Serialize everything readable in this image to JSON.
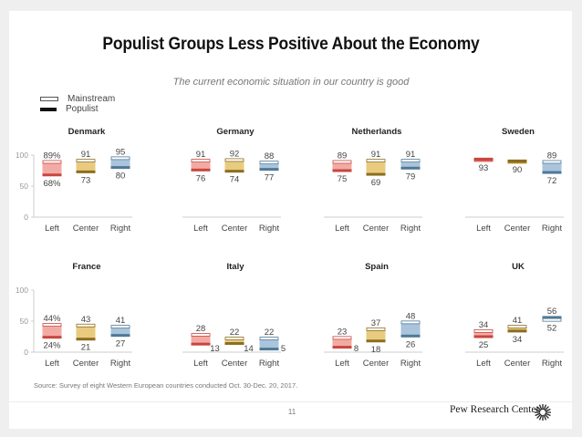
{
  "header": {
    "title": "Populist Groups Less Positive About the Economy",
    "subtitle": "The current economic situation in our country is good"
  },
  "legend": [
    {
      "key": "mainstream",
      "label": "Mainstream"
    },
    {
      "key": "populist",
      "label": "Populist"
    }
  ],
  "footer": {
    "source": "Source: Survey of eight Western European countries conducted Oct. 30-Dec. 20, 2017.",
    "page_number": "11",
    "brand": "Pew Research Center"
  },
  "colors": {
    "Left": {
      "fill": "#f2aba4",
      "line": "#c9463e"
    },
    "Center": {
      "fill": "#e9cb7f",
      "line": "#8c6d1f"
    },
    "Right": {
      "fill": "#a9c4dc",
      "line": "#4f7896"
    }
  },
  "chart_data": {
    "type": "range-bar",
    "title": "Populist Groups Less Positive About the Economy",
    "subtitle": "The current economic situation in our country is good",
    "categories": [
      "Left",
      "Center",
      "Right"
    ],
    "yticks": [
      0,
      50,
      100
    ],
    "ylim": [
      0,
      100
    ],
    "legend_placement": "top-left",
    "panels": [
      {
        "country": "Denmark",
        "mainstream": [
          89,
          91,
          95
        ],
        "populist": [
          68,
          73,
          80
        ],
        "percent_sign_on_first": true
      },
      {
        "country": "Germany",
        "mainstream": [
          91,
          92,
          88
        ],
        "populist": [
          76,
          74,
          77
        ]
      },
      {
        "country": "Netherlands",
        "mainstream": [
          89,
          91,
          91
        ],
        "populist": [
          75,
          69,
          79
        ]
      },
      {
        "country": "Sweden",
        "mainstream": [
          93,
          90,
          89
        ],
        "populist": [
          93,
          90,
          72
        ],
        "labels": [
          [
            "",
            "93"
          ],
          [
            "",
            "90"
          ],
          [
            "89",
            "72"
          ]
        ]
      },
      {
        "country": "France",
        "mainstream": [
          44,
          43,
          41
        ],
        "populist": [
          24,
          21,
          27
        ],
        "percent_sign_on_first": true
      },
      {
        "country": "Italy",
        "mainstream": [
          28,
          22,
          22
        ],
        "populist": [
          13,
          14,
          5
        ]
      },
      {
        "country": "Spain",
        "mainstream": [
          23,
          37,
          48
        ],
        "populist": [
          8,
          18,
          26
        ]
      },
      {
        "country": "UK",
        "mainstream": [
          34,
          41,
          52
        ],
        "populist": [
          25,
          34,
          56
        ]
      }
    ]
  }
}
